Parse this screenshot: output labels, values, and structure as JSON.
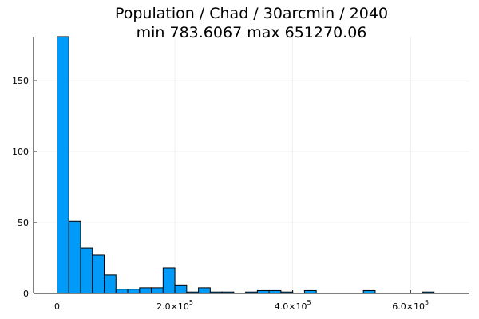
{
  "chart_data": {
    "type": "bar",
    "subtype": "histogram",
    "title_lines": [
      "Population / Chad / 30arcmin / 2040",
      "min 783.6067  max 651270.06"
    ],
    "xlabel": "",
    "ylabel": "",
    "bin_edges": [
      0,
      20000,
      40000,
      60000,
      80000,
      100000,
      120000,
      140000,
      160000,
      180000,
      200000,
      220000,
      240000,
      260000,
      280000,
      300000,
      320000,
      340000,
      360000,
      380000,
      400000,
      420000,
      440000,
      460000,
      480000,
      500000,
      520000,
      540000,
      560000,
      580000,
      600000,
      620000,
      640000,
      660000
    ],
    "counts": [
      181,
      51,
      32,
      27,
      13,
      3,
      3,
      4,
      4,
      18,
      6,
      1,
      4,
      1,
      1,
      0,
      1,
      2,
      2,
      1,
      0,
      2,
      0,
      0,
      0,
      0,
      2,
      0,
      0,
      0,
      0,
      1,
      0
    ],
    "xlim": [
      -40000,
      700000
    ],
    "ylim": [
      0,
      181
    ],
    "x_ticks": [
      {
        "value": 0,
        "mantissa": "0",
        "exponent": ""
      },
      {
        "value": 200000,
        "mantissa": "2.0×10",
        "exponent": "5"
      },
      {
        "value": 400000,
        "mantissa": "4.0×10",
        "exponent": "5"
      },
      {
        "value": 600000,
        "mantissa": "6.0×10",
        "exponent": "5"
      }
    ],
    "y_ticks": [
      {
        "value": 0,
        "label": "0"
      },
      {
        "value": 50,
        "label": "50"
      },
      {
        "value": 100,
        "label": "100"
      },
      {
        "value": 150,
        "label": "150"
      }
    ],
    "grid": true,
    "legend": "none",
    "bar_color": "#009AF9",
    "edge_color": "#000000"
  }
}
